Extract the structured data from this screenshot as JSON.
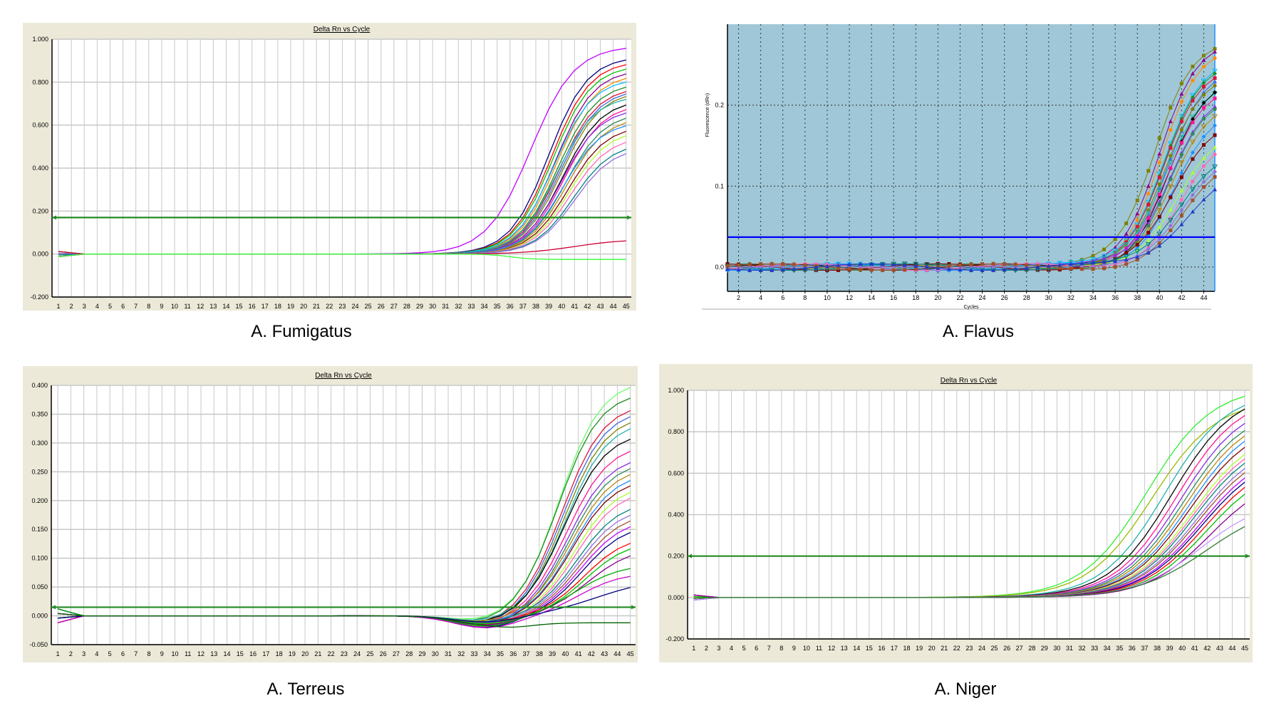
{
  "captions": [
    "A. Fumigatus",
    "A. Flavus",
    "A. Terreus",
    "A. Niger"
  ],
  "palette": [
    "#C000FF",
    "#000080",
    "#FF0000",
    "#00C000",
    "#8B008B",
    "#FF8C00",
    "#00BFFF",
    "#228B22",
    "#DC143C",
    "#4169E1",
    "#808000",
    "#20B2AA",
    "#000000",
    "#FF1493",
    "#8A2BE2",
    "#2E8B57",
    "#B8860B",
    "#1E90FF",
    "#800000",
    "#ADFF2F",
    "#FF69B4",
    "#008080",
    "#9370DB",
    "#A0522D"
  ],
  "chart_data": [
    {
      "type": "line",
      "title": "Delta Rn vs Cycle",
      "caption": "A. Fumigatus",
      "xlabel": "",
      "ylabel": "",
      "xlim": [
        0.5,
        45.4
      ],
      "ylim": [
        -0.2,
        1.0
      ],
      "xticks": [
        "1",
        "2",
        "3",
        "4",
        "5",
        "6",
        "7",
        "8",
        "9",
        "10",
        "11",
        "12",
        "13",
        "14",
        "15",
        "16",
        "17",
        "18",
        "19",
        "20",
        "21",
        "22",
        "23",
        "24",
        "25",
        "26",
        "27",
        "28",
        "29",
        "30",
        "31",
        "32",
        "33",
        "34",
        "35",
        "36",
        "37",
        "38",
        "39",
        "40",
        "41",
        "42",
        "43",
        "44",
        "45"
      ],
      "yticks": [
        -0.2,
        0.0,
        0.2,
        0.4,
        0.6,
        0.8,
        1.0
      ],
      "ytick_labels": [
        "-0.200",
        "0.000",
        "0.200",
        "0.400",
        "0.600",
        "0.800",
        "1.000"
      ],
      "threshold": 0.17,
      "threshold_color": "#228B22",
      "grid": true,
      "series_model": "logistic: baseline + plateau/(1+exp(-(cycle-midpoint)/slope))",
      "series": [
        {
          "m": 37.6,
          "p": 0.97,
          "s": 1.7,
          "c": "#C000FF"
        },
        {
          "m": 39.0,
          "p": 0.92,
          "s": 1.5
        },
        {
          "m": 39.2,
          "p": 0.9,
          "s": 1.5
        },
        {
          "m": 39.3,
          "p": 0.88,
          "s": 1.5
        },
        {
          "m": 39.5,
          "p": 0.86,
          "s": 1.5
        },
        {
          "m": 39.6,
          "p": 0.84,
          "s": 1.5
        },
        {
          "m": 39.4,
          "p": 0.82,
          "s": 1.5
        },
        {
          "m": 39.7,
          "p": 0.8,
          "s": 1.5
        },
        {
          "m": 39.8,
          "p": 0.78,
          "s": 1.5
        },
        {
          "m": 39.9,
          "p": 0.77,
          "s": 1.5
        },
        {
          "m": 40.0,
          "p": 0.76,
          "s": 1.5
        },
        {
          "m": 39.6,
          "p": 0.74,
          "s": 1.5
        },
        {
          "m": 40.1,
          "p": 0.72,
          "s": 1.5
        },
        {
          "m": 40.2,
          "p": 0.7,
          "s": 1.5
        },
        {
          "m": 40.0,
          "p": 0.68,
          "s": 1.5
        },
        {
          "m": 40.3,
          "p": 0.66,
          "s": 1.5
        },
        {
          "m": 40.4,
          "p": 0.64,
          "s": 1.5
        },
        {
          "m": 40.1,
          "p": 0.62,
          "s": 1.5
        },
        {
          "m": 40.5,
          "p": 0.6,
          "s": 1.5
        },
        {
          "m": 40.6,
          "p": 0.58,
          "s": 1.5
        },
        {
          "m": 40.7,
          "p": 0.55,
          "s": 1.5
        },
        {
          "m": 40.9,
          "p": 0.52,
          "s": 1.5
        },
        {
          "m": 41.0,
          "p": 0.5,
          "s": 1.5
        },
        {
          "m": 41.0,
          "p": 0.07,
          "s": 2.0,
          "c": "#CC0033"
        },
        {
          "m": 36.0,
          "p": -0.025,
          "s": 0.8,
          "c": "#33FF33"
        }
      ]
    },
    {
      "type": "line",
      "title": "",
      "caption": "A. Flavus",
      "xlabel": "Cycles",
      "ylabel": "Fluorescence (dRn)",
      "xlim": [
        1,
        45
      ],
      "ylim": [
        -0.03,
        0.3
      ],
      "xticks": [
        "2",
        "4",
        "6",
        "8",
        "10",
        "12",
        "14",
        "16",
        "18",
        "20",
        "22",
        "24",
        "26",
        "28",
        "30",
        "32",
        "34",
        "36",
        "38",
        "40",
        "42",
        "44"
      ],
      "yticks": [
        0.0,
        0.1,
        0.2
      ],
      "ytick_labels": [
        "0.0",
        "0.1",
        "0.2"
      ],
      "threshold": 0.037,
      "threshold_color": "#0000FF",
      "grid": true,
      "markers": true,
      "series_model": "logistic: baseline + plateau/(1+exp(-(cycle-midpoint)/slope))",
      "series": [
        {
          "m": 39.6,
          "p": 0.285,
          "s": 1.7,
          "c": "#808000"
        },
        {
          "m": 40.0,
          "p": 0.28,
          "s": 1.7
        },
        {
          "m": 40.2,
          "p": 0.27,
          "s": 1.7
        },
        {
          "m": 40.3,
          "p": 0.26,
          "s": 1.7
        },
        {
          "m": 40.4,
          "p": 0.255,
          "s": 1.7
        },
        {
          "m": 40.5,
          "p": 0.25,
          "s": 1.7
        },
        {
          "m": 40.6,
          "p": 0.245,
          "s": 1.7
        },
        {
          "m": 40.5,
          "p": 0.24,
          "s": 1.7
        },
        {
          "m": 40.7,
          "p": 0.235,
          "s": 1.7
        },
        {
          "m": 40.8,
          "p": 0.23,
          "s": 1.7
        },
        {
          "m": 40.7,
          "p": 0.225,
          "s": 1.7
        },
        {
          "m": 40.9,
          "p": 0.22,
          "s": 1.7
        },
        {
          "m": 41.0,
          "p": 0.21,
          "s": 1.7
        },
        {
          "m": 41.1,
          "p": 0.205,
          "s": 1.7
        },
        {
          "m": 41.2,
          "p": 0.195,
          "s": 1.7
        },
        {
          "m": 41.4,
          "p": 0.185,
          "s": 1.8
        },
        {
          "m": 41.6,
          "p": 0.17,
          "s": 1.8
        },
        {
          "m": 41.8,
          "p": 0.16,
          "s": 1.8
        },
        {
          "m": 41.9,
          "p": 0.15,
          "s": 1.8
        },
        {
          "m": 42.0,
          "p": 0.14,
          "s": 1.8
        },
        {
          "m": 42.2,
          "p": 0.13,
          "s": 1.8
        },
        {
          "m": 42.4,
          "p": 0.125,
          "s": 1.9,
          "c": "#1E3CC8"
        }
      ],
      "baseline_wave": {
        "amplitude": 0.004,
        "period": 20
      }
    },
    {
      "type": "line",
      "title": "Delta Rn vs Cycle",
      "caption": "A. Terreus",
      "xlabel": "",
      "ylabel": "",
      "xlim": [
        0.5,
        45.4
      ],
      "ylim": [
        -0.05,
        0.4
      ],
      "xticks": [
        "1",
        "2",
        "3",
        "4",
        "5",
        "6",
        "7",
        "8",
        "9",
        "10",
        "11",
        "12",
        "13",
        "14",
        "15",
        "16",
        "17",
        "18",
        "19",
        "20",
        "21",
        "22",
        "23",
        "24",
        "25",
        "26",
        "27",
        "28",
        "29",
        "30",
        "31",
        "32",
        "33",
        "34",
        "35",
        "36",
        "37",
        "38",
        "39",
        "40",
        "41",
        "42",
        "43",
        "44",
        "45"
      ],
      "yticks": [
        -0.05,
        0.0,
        0.05,
        0.1,
        0.15,
        0.2,
        0.25,
        0.3,
        0.35,
        0.4
      ],
      "ytick_labels": [
        "-0.050",
        "0.000",
        "0.050",
        "0.100",
        "0.150",
        "0.200",
        "0.250",
        "0.300",
        "0.350",
        "0.400"
      ],
      "threshold": 0.015,
      "threshold_color": "#228B22",
      "grid": true,
      "series_model": "logistic: baseline + plateau/(1+exp(-(cycle-midpoint)/slope))",
      "baseline_dip": {
        "cycle": 34,
        "depth": -0.012,
        "width": 3.5
      },
      "series": [
        {
          "m": 39.6,
          "p": 0.41,
          "s": 1.6,
          "c": "#66FF66"
        },
        {
          "m": 39.5,
          "p": 0.39,
          "s": 1.6
        },
        {
          "m": 39.8,
          "p": 0.37,
          "s": 1.6
        },
        {
          "m": 39.9,
          "p": 0.36,
          "s": 1.6
        },
        {
          "m": 40.0,
          "p": 0.35,
          "s": 1.6
        },
        {
          "m": 40.1,
          "p": 0.34,
          "s": 1.6
        },
        {
          "m": 40.0,
          "p": 0.32,
          "s": 1.6
        },
        {
          "m": 40.2,
          "p": 0.3,
          "s": 1.6
        },
        {
          "m": 40.3,
          "p": 0.28,
          "s": 1.6
        },
        {
          "m": 40.4,
          "p": 0.27,
          "s": 1.6
        },
        {
          "m": 40.5,
          "p": 0.26,
          "s": 1.6
        },
        {
          "m": 40.6,
          "p": 0.25,
          "s": 1.6
        },
        {
          "m": 40.6,
          "p": 0.24,
          "s": 1.6
        },
        {
          "m": 40.8,
          "p": 0.23,
          "s": 1.6
        },
        {
          "m": 40.9,
          "p": 0.22,
          "s": 1.6
        },
        {
          "m": 41.0,
          "p": 0.2,
          "s": 1.6
        },
        {
          "m": 41.1,
          "p": 0.19,
          "s": 1.6
        },
        {
          "m": 41.2,
          "p": 0.18,
          "s": 1.6
        },
        {
          "m": 41.3,
          "p": 0.17,
          "s": 1.6
        },
        {
          "m": 41.4,
          "p": 0.16,
          "s": 1.6
        },
        {
          "m": 41.5,
          "p": 0.14,
          "s": 1.6
        },
        {
          "m": 41.6,
          "p": 0.13,
          "s": 1.6
        },
        {
          "m": 41.8,
          "p": 0.12,
          "s": 1.7
        },
        {
          "m": 41.0,
          "p": 0.09,
          "s": 1.7,
          "c": "#00AA00"
        },
        {
          "m": 41.2,
          "p": 0.075,
          "s": 1.6,
          "c": "#CC00CC"
        },
        {
          "m": 42.5,
          "p": 0.065,
          "s": 2.2,
          "c": "#000080"
        },
        {
          "m": 35.0,
          "p": -0.012,
          "s": 0.8,
          "c": "#006400"
        }
      ]
    },
    {
      "type": "line",
      "title": "Delta Rn vs Cycle",
      "caption": "A. Niger",
      "xlabel": "",
      "ylabel": "",
      "xlim": [
        0.5,
        45.4
      ],
      "ylim": [
        -0.2,
        1.0
      ],
      "xticks": [
        "1",
        "2",
        "3",
        "4",
        "5",
        "6",
        "7",
        "8",
        "9",
        "10",
        "11",
        "12",
        "13",
        "14",
        "15",
        "16",
        "17",
        "18",
        "19",
        "20",
        "21",
        "22",
        "23",
        "24",
        "25",
        "26",
        "27",
        "28",
        "29",
        "30",
        "31",
        "32",
        "33",
        "34",
        "35",
        "36",
        "37",
        "38",
        "39",
        "40",
        "41",
        "42",
        "43",
        "44",
        "45"
      ],
      "yticks": [
        -0.2,
        0.0,
        0.2,
        0.4,
        0.6,
        0.8,
        1.0
      ],
      "ytick_labels": [
        "-0.200",
        "0.000",
        "0.200",
        "0.400",
        "0.600",
        "0.800",
        "1.000"
      ],
      "threshold": 0.2,
      "threshold_color": "#228B22",
      "grid": true,
      "series_model": "logistic: baseline + plateau/(1+exp(-(cycle-midpoint)/slope))",
      "series": [
        {
          "m": 37.2,
          "p": 1.02,
          "s": 2.6,
          "c": "#33EE33"
        },
        {
          "m": 37.6,
          "p": 0.96,
          "s": 2.6,
          "c": "#99BB00"
        },
        {
          "m": 38.6,
          "p": 1.0,
          "s": 2.5
        },
        {
          "m": 39.2,
          "p": 1.0,
          "s": 2.5
        },
        {
          "m": 39.6,
          "p": 0.98,
          "s": 2.5
        },
        {
          "m": 39.9,
          "p": 0.95,
          "s": 2.5
        },
        {
          "m": 40.1,
          "p": 0.92,
          "s": 2.5
        },
        {
          "m": 40.3,
          "p": 0.9,
          "s": 2.5
        },
        {
          "m": 40.5,
          "p": 0.88,
          "s": 2.5
        },
        {
          "m": 40.6,
          "p": 0.85,
          "s": 2.5
        },
        {
          "m": 40.8,
          "p": 0.82,
          "s": 2.5
        },
        {
          "m": 40.9,
          "p": 0.8,
          "s": 2.5
        },
        {
          "m": 41.0,
          "p": 0.78,
          "s": 2.5
        },
        {
          "m": 41.2,
          "p": 0.76,
          "s": 2.5
        },
        {
          "m": 41.3,
          "p": 0.74,
          "s": 2.5
        },
        {
          "m": 41.5,
          "p": 0.72,
          "s": 2.5
        },
        {
          "m": 41.6,
          "p": 0.7,
          "s": 2.5
        },
        {
          "m": 41.8,
          "p": 0.68,
          "s": 2.5
        },
        {
          "m": 42.0,
          "p": 0.65,
          "s": 2.5
        },
        {
          "m": 42.2,
          "p": 0.6,
          "s": 2.5
        },
        {
          "m": 41.5,
          "p": 0.48,
          "s": 2.6,
          "c": "#CC99FF"
        },
        {
          "m": 42.0,
          "p": 0.46,
          "s": 2.8,
          "c": "#2E7D32"
        }
      ]
    }
  ]
}
